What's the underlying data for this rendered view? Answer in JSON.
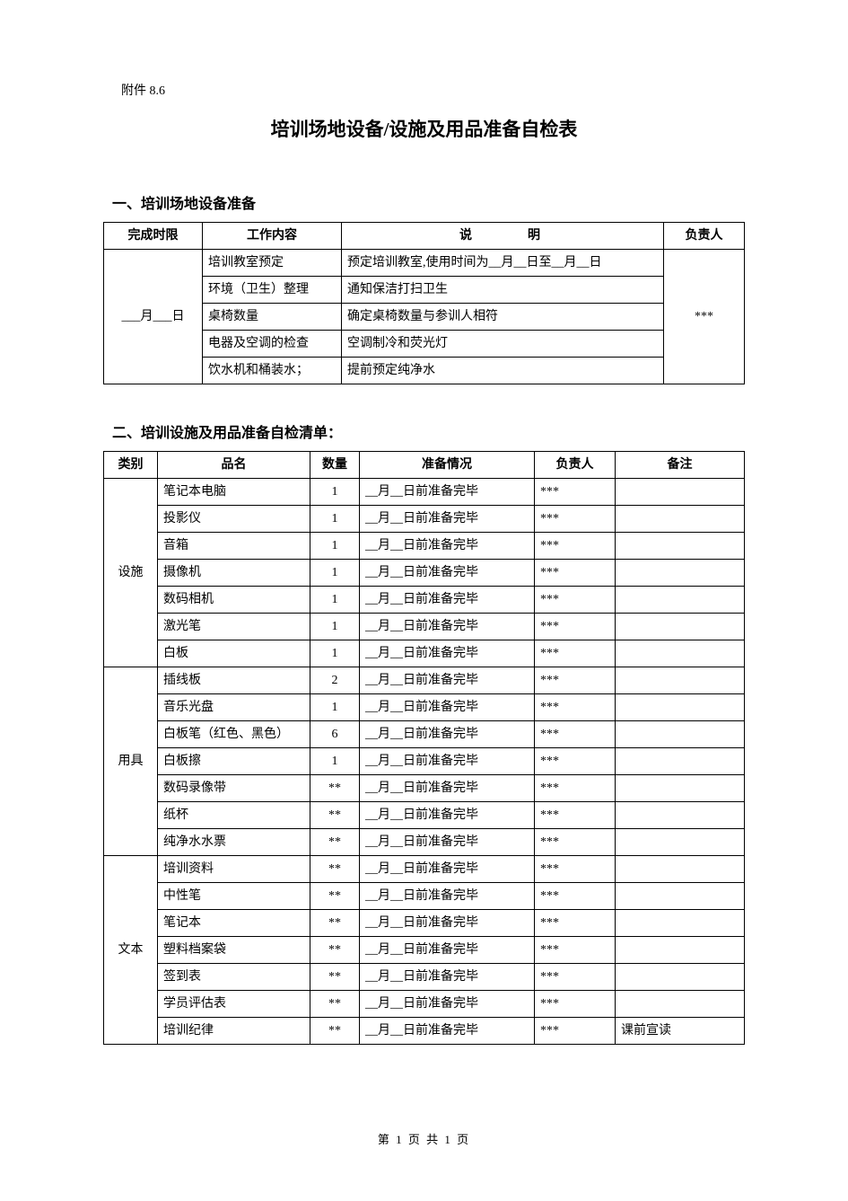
{
  "attachment_no": "附件 8.6",
  "main_title": "培训场地设备/设施及用品准备自检表",
  "section1": {
    "heading": "一、培训场地设备准备",
    "headers": {
      "deadline": "完成时限",
      "work": "工作内容",
      "desc": "说　明",
      "owner": "负责人"
    },
    "deadline_cell": "___月___日",
    "owner_cell": "***",
    "rows": [
      {
        "work": "培训教室预定",
        "desc": "预定培训教室,使用时间为__月__日至__月__日"
      },
      {
        "work": "环境（卫生）整理",
        "desc": "通知保洁打扫卫生"
      },
      {
        "work": "桌椅数量",
        "desc": "确定桌椅数量与参训人相符"
      },
      {
        "work": "电器及空调的检查",
        "desc": "空调制冷和荧光灯"
      },
      {
        "work": "饮水机和桶装水；",
        "desc": "提前预定纯净水"
      }
    ]
  },
  "section2": {
    "heading": "二、培训设施及用品准备自检清单：",
    "headers": {
      "cat": "类别",
      "name": "品名",
      "qty": "数量",
      "status": "准备情况",
      "owner": "负责人",
      "remark": "备注"
    },
    "status_text": "__月__日前准备完毕",
    "categories": [
      {
        "label": "设施",
        "rows": [
          {
            "name": "笔记本电脑",
            "qty": "1",
            "owner": "***",
            "remark": ""
          },
          {
            "name": "投影仪",
            "qty": "1",
            "owner": "***",
            "remark": ""
          },
          {
            "name": "音箱",
            "qty": "1",
            "owner": "***",
            "remark": ""
          },
          {
            "name": "摄像机",
            "qty": "1",
            "owner": "***",
            "remark": ""
          },
          {
            "name": "数码相机",
            "qty": "1",
            "owner": "***",
            "remark": ""
          },
          {
            "name": "激光笔",
            "qty": "1",
            "owner": "***",
            "remark": ""
          },
          {
            "name": "白板",
            "qty": "1",
            "owner": "***",
            "remark": ""
          }
        ]
      },
      {
        "label": "用具",
        "rows": [
          {
            "name": "插线板",
            "qty": "2",
            "owner": "***",
            "remark": ""
          },
          {
            "name": "音乐光盘",
            "qty": "1",
            "owner": "***",
            "remark": ""
          },
          {
            "name": "白板笔（红色、黑色）",
            "qty": "6",
            "owner": "***",
            "remark": ""
          },
          {
            "name": "白板擦",
            "qty": "1",
            "owner": "***",
            "remark": ""
          },
          {
            "name": "数码录像带",
            "qty": "**",
            "owner": "***",
            "remark": ""
          },
          {
            "name": "纸杯",
            "qty": "**",
            "owner": "***",
            "remark": ""
          },
          {
            "name": "纯净水水票",
            "qty": "**",
            "owner": "***",
            "remark": ""
          }
        ]
      },
      {
        "label": "文本",
        "rows": [
          {
            "name": "培训资料",
            "qty": "**",
            "owner": "***",
            "remark": ""
          },
          {
            "name": "中性笔",
            "qty": "**",
            "owner": "***",
            "remark": ""
          },
          {
            "name": "笔记本",
            "qty": "**",
            "owner": "***",
            "remark": ""
          },
          {
            "name": "塑料档案袋",
            "qty": "**",
            "owner": "***",
            "remark": ""
          },
          {
            "name": "签到表",
            "qty": "**",
            "owner": "***",
            "remark": ""
          },
          {
            "name": "学员评估表",
            "qty": "**",
            "owner": "***",
            "remark": ""
          },
          {
            "name": "培训纪律",
            "qty": "**",
            "owner": "***",
            "remark": "课前宣读"
          }
        ]
      }
    ]
  },
  "footer": "第 1 页 共 1 页"
}
